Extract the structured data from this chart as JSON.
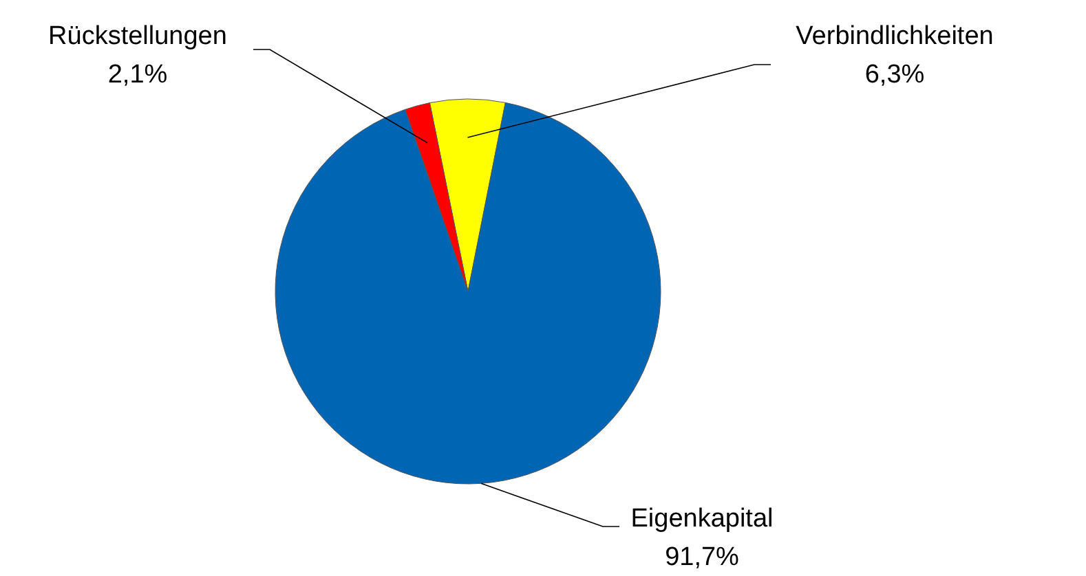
{
  "chart_data": {
    "type": "pie",
    "categories": [
      "Verbindlichkeiten",
      "Eigenkapital",
      "Rückstellungen"
    ],
    "values": [
      6.3,
      91.7,
      2.1
    ],
    "colors": [
      "#ffff00",
      "#0066b3",
      "#ff0000"
    ],
    "value_labels": [
      "6,3%",
      "91,7%",
      "2,1%"
    ]
  }
}
